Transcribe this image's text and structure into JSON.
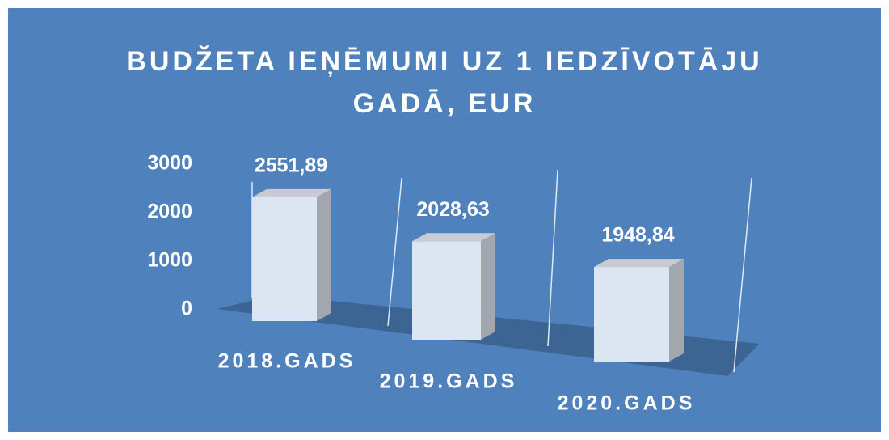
{
  "chart_data": {
    "type": "bar3d",
    "title": "BUDŽETA IEŅĒMUMI UZ 1 IEDZĪVOTĀJU GADĀ, EUR",
    "categories": [
      "2018.GADS",
      "2019.GADS",
      "2020.GADS"
    ],
    "values": [
      2551.89,
      2028.63,
      1948.84
    ],
    "value_labels": [
      "2551,89",
      "2028,63",
      "1948,84"
    ],
    "color": "#dce6f2",
    "ylim": [
      0,
      3000
    ],
    "yticks": [
      0,
      1000,
      2000,
      3000
    ]
  }
}
